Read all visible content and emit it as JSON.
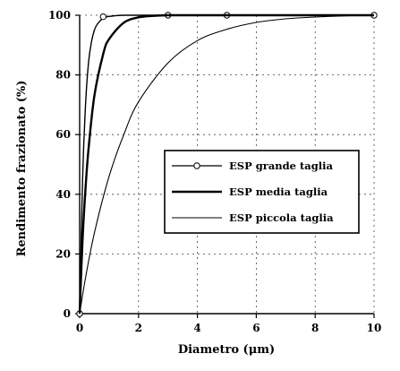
{
  "chart_data": {
    "type": "line",
    "xlabel": "Diametro (μm)",
    "ylabel": "Rendimento frazionato (%)",
    "xlim": [
      0,
      10
    ],
    "ylim": [
      0,
      100
    ],
    "x_ticks": [
      0,
      2,
      4,
      6,
      8,
      10
    ],
    "y_ticks": [
      0,
      20,
      40,
      60,
      80,
      100
    ],
    "x_tick_labels": [
      "0",
      "2",
      "4",
      "6",
      "8",
      "10"
    ],
    "y_tick_labels": [
      "0",
      "20",
      "40",
      "60",
      "80",
      "100"
    ],
    "grid": true,
    "legend_position": "center-right",
    "series": [
      {
        "name": "ESP grande taglia",
        "style": "marker",
        "color": "#000000",
        "x": [
          0,
          0.1,
          0.2,
          0.3,
          0.4,
          0.5,
          0.6,
          0.8,
          1.0,
          1.5,
          2,
          3,
          5,
          8,
          10
        ],
        "y": [
          0,
          45,
          70,
          84,
          91,
          95,
          97,
          99,
          99.6,
          100,
          100,
          100,
          100,
          100,
          100
        ],
        "markers": [
          [
            0,
            0
          ],
          [
            0.8,
            99.5
          ],
          [
            3,
            100
          ],
          [
            5,
            100
          ],
          [
            10,
            100
          ]
        ]
      },
      {
        "name": "ESP media taglia",
        "style": "thick",
        "color": "#000000",
        "x": [
          0,
          0.1,
          0.2,
          0.3,
          0.5,
          0.8,
          1.0,
          1.5,
          2,
          2.5,
          3,
          4,
          6,
          8,
          10
        ],
        "y": [
          0,
          25,
          42,
          55,
          73,
          87,
          92,
          97.5,
          99.3,
          99.8,
          100,
          100,
          100,
          100,
          100
        ]
      },
      {
        "name": "ESP piccola taglia",
        "style": "thin",
        "color": "#000000",
        "x": [
          0,
          0.2,
          0.5,
          1.0,
          1.5,
          2,
          3,
          4,
          5,
          6,
          7,
          8,
          9,
          10
        ],
        "y": [
          0,
          12,
          27,
          46,
          60,
          71,
          84,
          91.5,
          95.3,
          97.6,
          98.8,
          99.4,
          99.8,
          100
        ]
      }
    ]
  }
}
